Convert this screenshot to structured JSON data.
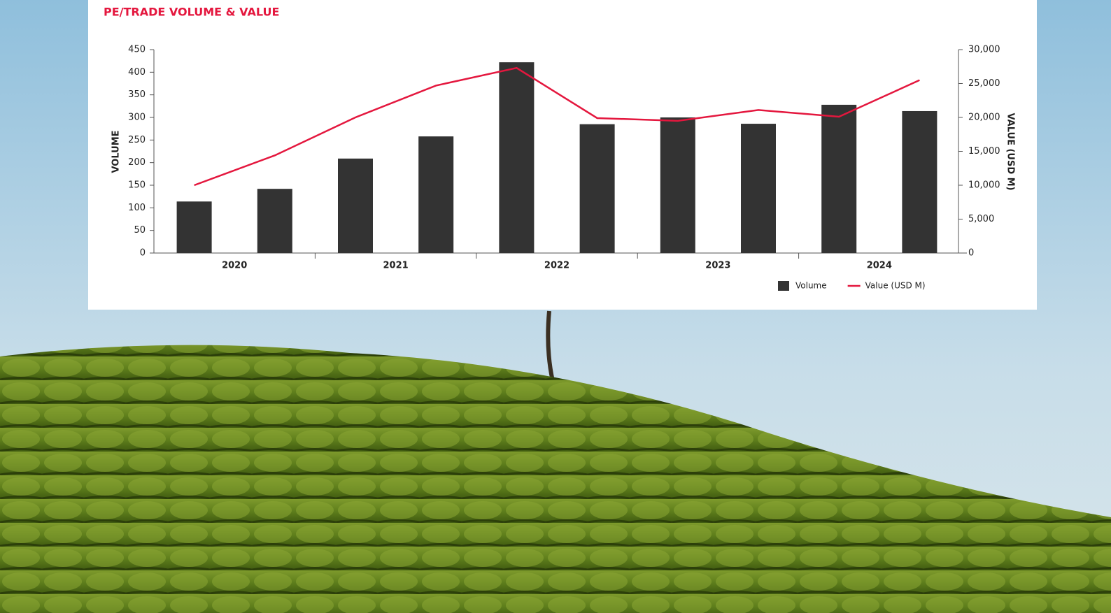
{
  "chart_data": {
    "type": "bar-line",
    "title": "PE/TRADE VOLUME & VALUE",
    "categories": [
      null,
      null,
      null,
      null,
      null,
      null,
      null,
      null,
      null,
      null
    ],
    "category_groups": [
      "2020",
      "2021",
      "2022",
      "2023",
      "2024"
    ],
    "y_label": "VOLUME",
    "y2_label": "VALUE (USD M)",
    "series": [
      {
        "name": "Volume",
        "type": "bar",
        "color": "#333333",
        "values": [
          114,
          142,
          209,
          258,
          422,
          285,
          300,
          286,
          328,
          314
        ]
      },
      {
        "name": "Value (USD M)",
        "type": "line",
        "axis": "y2",
        "color": "#e4173e",
        "values": [
          10000,
          14400,
          20000,
          24700,
          27300,
          19900,
          19500,
          21100,
          20100,
          25500
        ]
      }
    ],
    "ylim": [
      0,
      450
    ],
    "yticks": [
      0,
      50,
      100,
      150,
      200,
      250,
      300,
      350,
      400,
      450
    ],
    "y2lim": [
      0,
      30000
    ],
    "y2ticks": [
      0,
      {
        "value": 5000,
        "label": "5,000"
      },
      {
        "value": 10000,
        "label": "10,000"
      },
      {
        "value": 15000,
        "label": "15,000"
      },
      {
        "value": 20000,
        "label": "20,000"
      },
      {
        "value": 25000,
        "label": "25,000"
      },
      {
        "value": 30000,
        "label": "30,000"
      }
    ],
    "legend": "bottom-right"
  }
}
